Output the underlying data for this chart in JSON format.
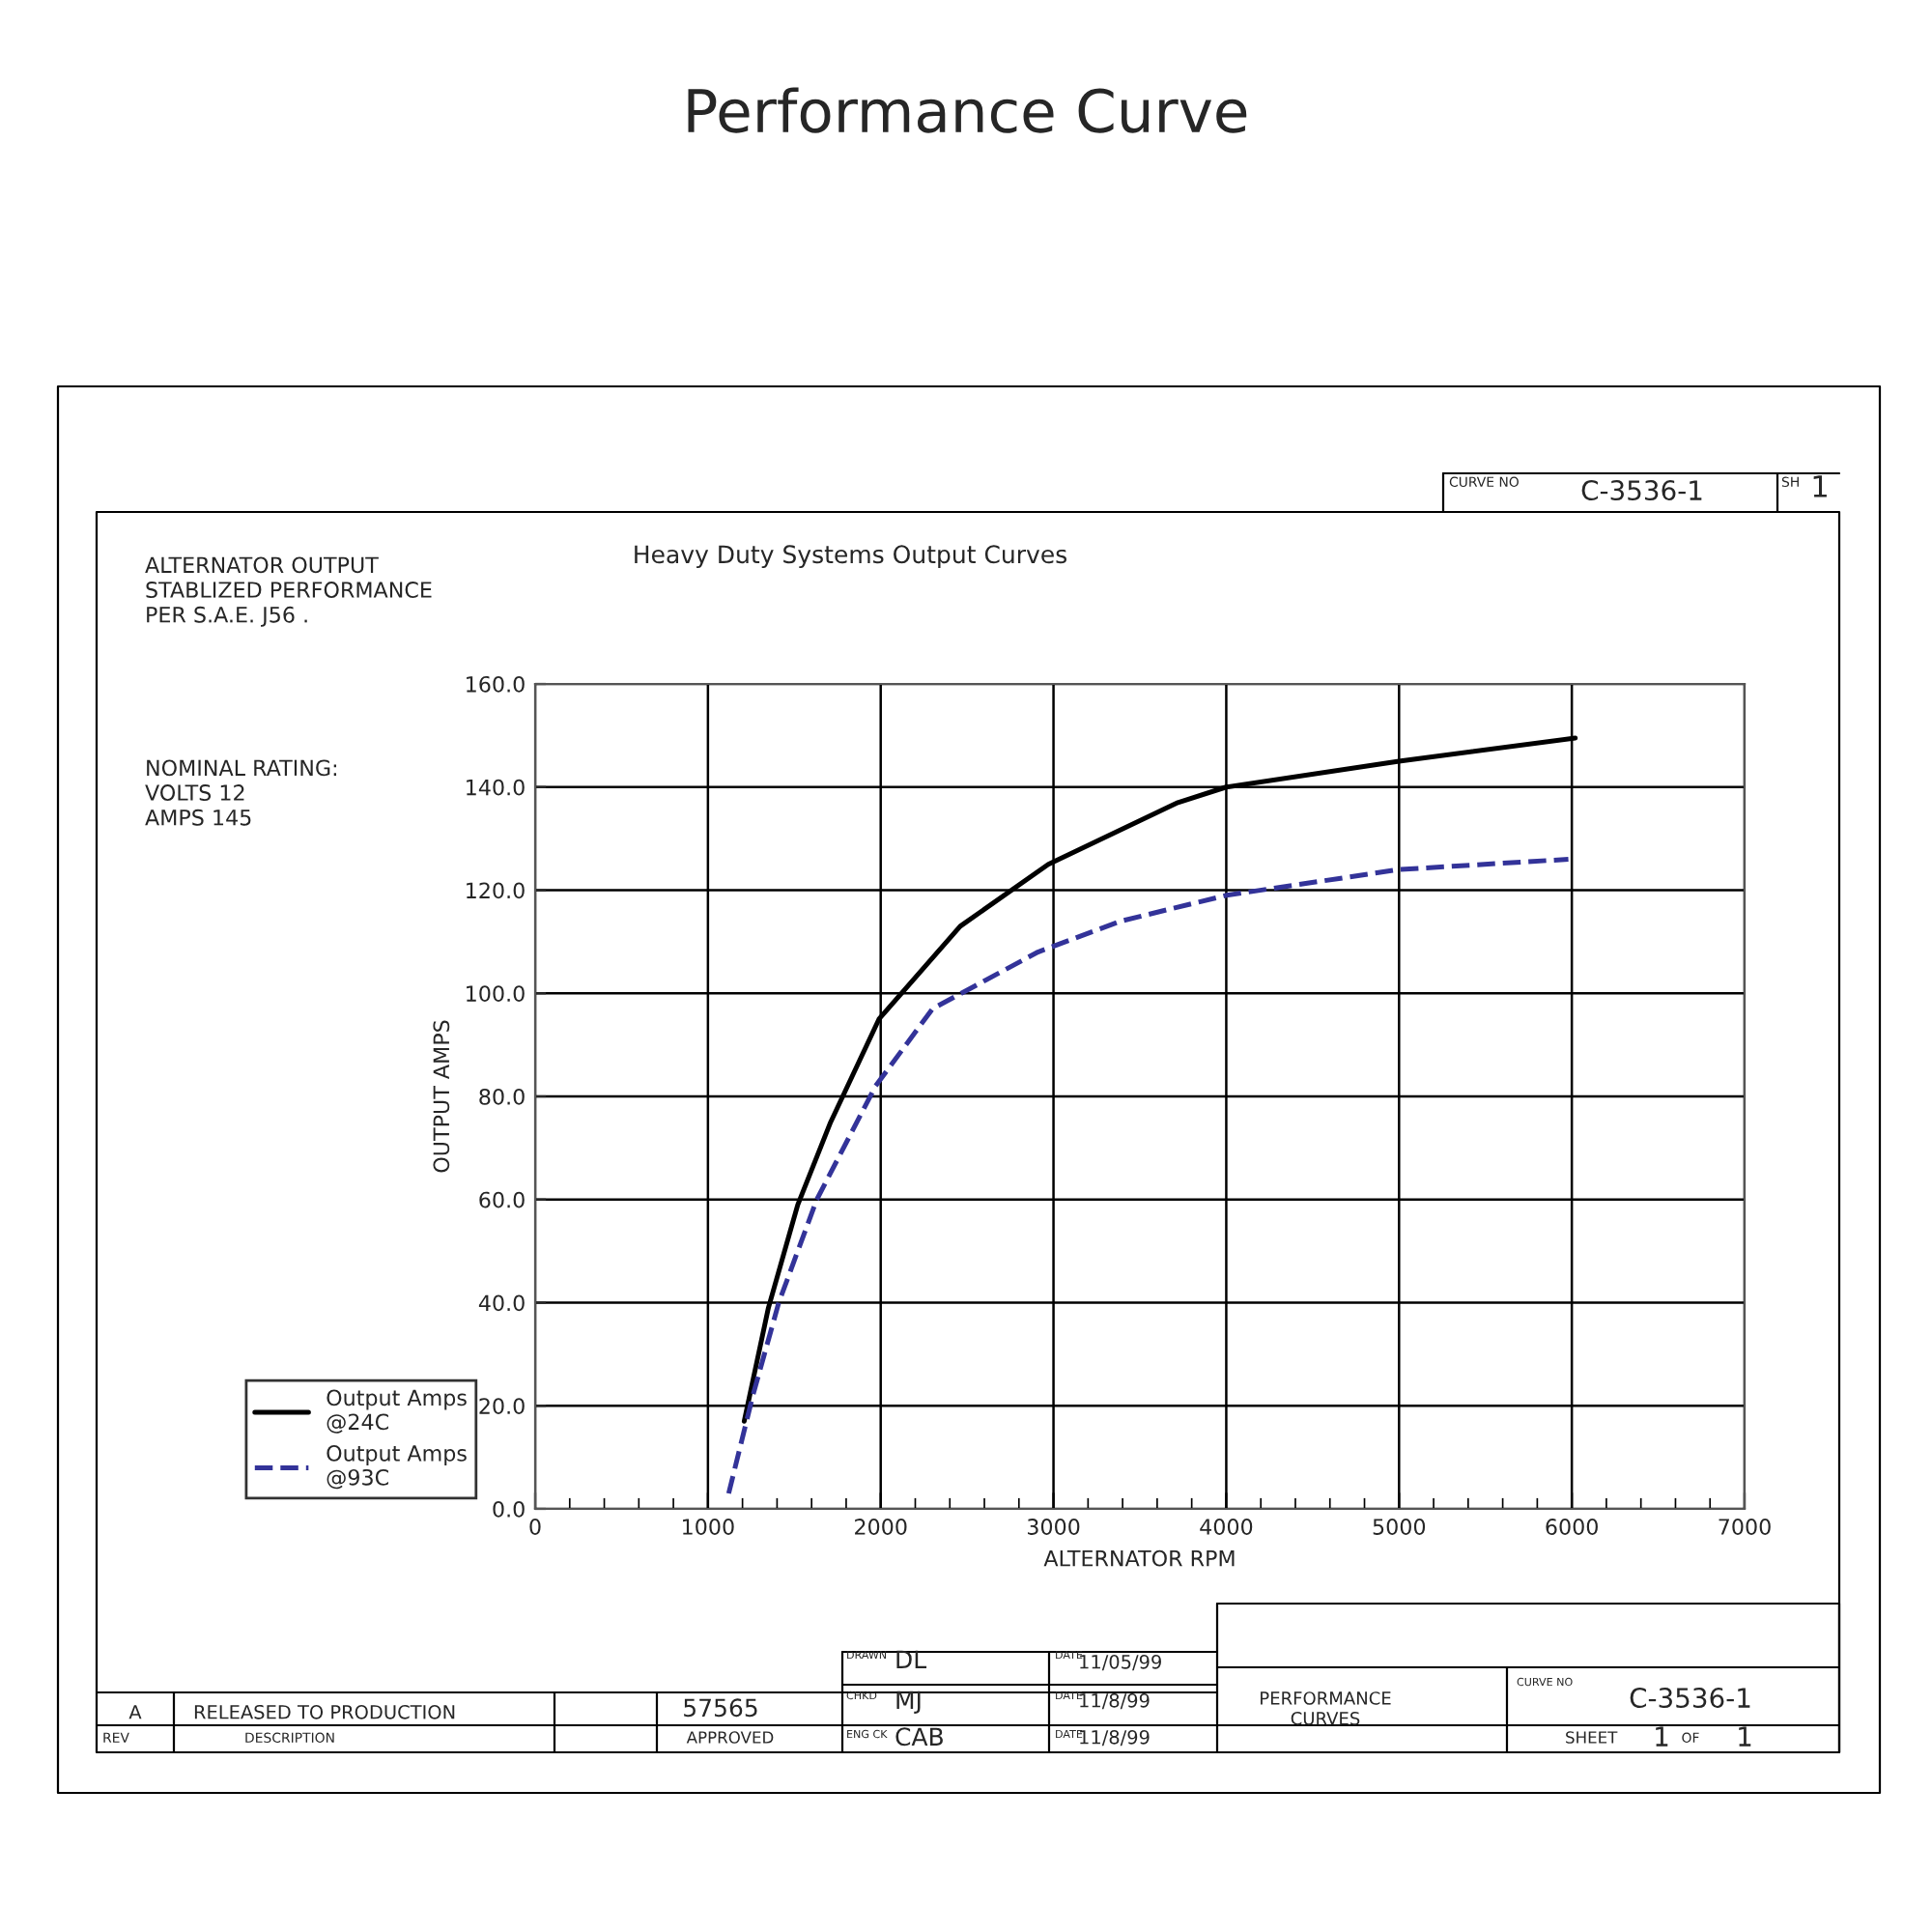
{
  "chart_data": {
    "type": "line",
    "title": "Performance Curve",
    "subtitle": "Heavy Duty Systems Output Curves",
    "xlabel": "ALTERNATOR RPM",
    "ylabel": "OUTPUT AMPS",
    "xlim": [
      0,
      7000
    ],
    "xticks": [
      0,
      1000,
      2000,
      3000,
      4000,
      5000,
      6000,
      7000
    ],
    "ylim": [
      0,
      160
    ],
    "yticks": [
      {
        "value": 0,
        "label": "0.0"
      },
      {
        "value": 20,
        "label": "20.0"
      },
      {
        "value": 40,
        "label": "40.0"
      },
      {
        "value": 60,
        "label": "60.0"
      },
      {
        "value": 80,
        "label": "80.0"
      },
      {
        "value": 100,
        "label": "100.0"
      },
      {
        "value": 120,
        "label": "120.0"
      },
      {
        "value": 140,
        "label": "140.0"
      },
      {
        "value": 160,
        "label": "160.0"
      }
    ],
    "grid": true,
    "legend": "bottom left",
    "marker": "none",
    "series": [
      {
        "name": "Output Amps\n@24C",
        "color": "#000000",
        "line_style": "solid",
        "x": [
          1210,
          1350,
          1520,
          1710,
          1990,
          2460,
          2970,
          3720,
          4000,
          5000,
          6020
        ],
        "values": [
          17,
          39,
          59,
          75,
          95,
          113,
          125,
          137,
          140,
          145,
          149.5
        ]
      },
      {
        "name": "Output Amps\n@93C",
        "color": "#333399",
        "line_style": "dashed",
        "x": [
          1120,
          1260,
          1410,
          1630,
          1970,
          2300,
          2910,
          3390,
          4000,
          5000,
          5980
        ],
        "values": [
          3,
          22,
          40,
          60,
          82,
          97,
          108,
          114,
          119,
          124,
          126
        ]
      }
    ],
    "annotations": [
      "ALTERNATOR OUTPUT\nSTABLIZED PERFORMANCE\nPER S.A.E. J56 .",
      "NOMINAL RATING:\nVOLTS 12\nAMPS 145",
      "CURVE NO",
      "C-3536-1",
      "SH",
      "1",
      "A",
      "RELEASED TO PRODUCTION",
      "REV",
      "DESCRIPTION",
      "57565",
      "APPROVED",
      "DRAWN",
      "DL",
      "CHKD",
      "MJ",
      "ENG CK",
      "CAB",
      "DATE",
      "11/05/99",
      "DATE",
      "11/8/99",
      "DATE",
      "11/8/99",
      "PERFORMANCE\nCURVES",
      "CURVE NO",
      "C-3536-1",
      "SHEET",
      "1",
      "OF",
      "1"
    ]
  }
}
